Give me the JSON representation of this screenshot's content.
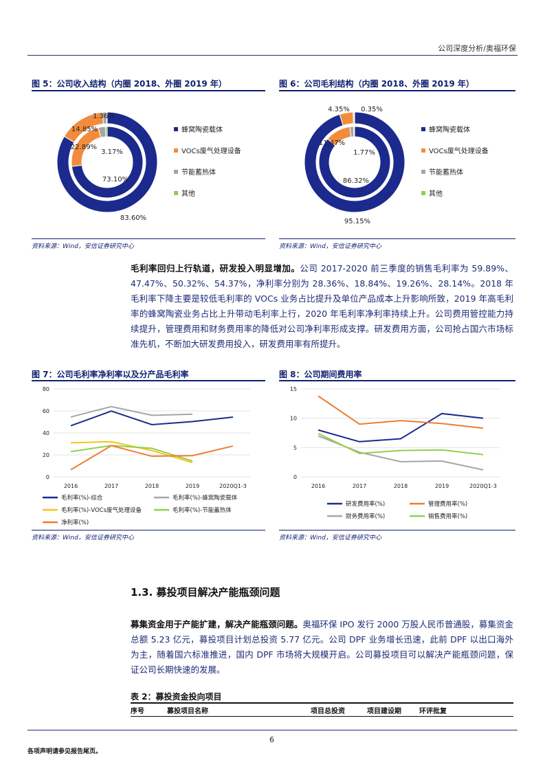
{
  "header": {
    "title": "公司深度分析/奥福环保"
  },
  "fig5": {
    "title": "图 5：公司收入结构（内圈 2018、外圈 2019 年）",
    "source": "资料来源：Wind，安信证券研究中心",
    "legend": [
      "蜂窝陶瓷载体",
      "VOCs废气处理设备",
      "节能蓄热体",
      "其他"
    ],
    "colors": [
      "#1b2a8c",
      "#f28c3c",
      "#a6a6a6",
      "#8fcf4c"
    ],
    "outer": [
      83.6,
      14.85,
      1.36,
      0.19
    ],
    "inner": [
      73.1,
      22.89,
      3.17,
      0.84
    ],
    "labels": {
      "outer_main": "83.60%",
      "outer_voc": "14.85%",
      "outer_small": "1.36%",
      "inner_main": "73.10%",
      "inner_voc": "22.89%",
      "inner_small": "3.17%"
    }
  },
  "fig6": {
    "title": "图 6：公司毛利结构（内圈 2018、外圈 2019 年）",
    "source": "资料来源：Wind，安信证券研究中心",
    "legend": [
      "蜂窝陶瓷载体",
      "VOCs废气处理设备",
      "节能蓄热体",
      "其他"
    ],
    "colors": [
      "#1b2a8c",
      "#f28c3c",
      "#a6a6a6",
      "#8fcf4c"
    ],
    "outer": [
      95.15,
      4.35,
      0.35,
      0.15
    ],
    "inner": [
      86.32,
      11.47,
      1.77,
      0.44
    ],
    "labels": {
      "outer_main": "95.15%",
      "outer_voc": "4.35%",
      "outer_small": "0.35%",
      "inner_main": "86.32%",
      "inner_voc": "11.47%",
      "inner_small": "1.77%"
    }
  },
  "para1": {
    "bold": "毛利率回归上行轨道，研发投入明显增加。",
    "text": "公司 2017-2020 前三季度的销售毛利率为 59.89%、47.47%、50.32%、54.37%，净利率分别为 28.36%、18.84%、19.26%、28.14%。2018 年毛利率下降主要是较低毛利率的 VOCs 业务占比提升及单位产品成本上升影响所致，2019 年高毛利率的蜂窝陶瓷业务占比上升带动毛利率上行，2020 年毛利率净利率持续上升。公司费用管控能力持续提升，管理费用和财务费用率的降低对公司净利率形成支撑。研发费用方面，公司抢占国六市场标准先机，不断加大研发费用投入，研发费用率有所提升。"
  },
  "fig7": {
    "title": "图 7：公司毛利率净利率以及分产品毛利率",
    "source": "资料来源：Wind，安信证券研究中心"
  },
  "fig8": {
    "title": "图 8：公司期间费用率",
    "source": "资料来源：Wind，安信证券研究中心"
  },
  "chart_data": [
    {
      "type": "line",
      "id": "fig7",
      "categories": [
        "2016",
        "2017",
        "2018",
        "2019",
        "2020Q1-3"
      ],
      "ylim": [
        0,
        80
      ],
      "yticks": [
        0,
        20,
        40,
        60,
        80
      ],
      "grid": true,
      "legend_position": "bottom",
      "series": [
        {
          "name": "毛利率(%)-综合",
          "color": "#1b2a8c",
          "values": [
            46.5,
            59.9,
            47.5,
            50.3,
            54.4
          ]
        },
        {
          "name": "毛利率(%)-蜂窝陶瓷载体",
          "color": "#a6a6a6",
          "values": [
            54.5,
            64.0,
            56.0,
            57.0,
            null
          ]
        },
        {
          "name": "毛利率(%)-VOCs废气处理设备",
          "color": "#f5c518",
          "values": [
            31.0,
            32.0,
            24.0,
            13.0,
            null
          ]
        },
        {
          "name": "毛利率(%)-节能蓄热体",
          "color": "#8fcf4c",
          "values": [
            23.0,
            28.5,
            26.0,
            14.5,
            null
          ]
        },
        {
          "name": "净利率(%)",
          "color": "#ed7d31",
          "values": [
            6.5,
            28.4,
            18.8,
            19.3,
            28.1
          ]
        }
      ]
    },
    {
      "type": "line",
      "id": "fig8",
      "categories": [
        "2016",
        "2017",
        "2018",
        "2019",
        "2020Q1-3"
      ],
      "ylim": [
        0,
        15
      ],
      "yticks": [
        0,
        5,
        10,
        15
      ],
      "grid": true,
      "legend_position": "bottom",
      "series": [
        {
          "name": "研发费用率(%)",
          "color": "#1b2a8c",
          "values": [
            8.0,
            6.0,
            6.5,
            10.8,
            10.0
          ]
        },
        {
          "name": "管理费用率(%)",
          "color": "#ed7d31",
          "values": [
            13.8,
            9.0,
            9.6,
            9.1,
            8.3
          ]
        },
        {
          "name": "财务费用率(%)",
          "color": "#a6a6a6",
          "values": [
            7.0,
            4.2,
            2.6,
            2.7,
            1.2
          ]
        },
        {
          "name": "销售费用率(%)",
          "color": "#8fcf4c",
          "values": [
            7.4,
            4.0,
            4.5,
            4.6,
            3.8
          ]
        }
      ]
    }
  ],
  "section": {
    "number": "1.3.",
    "title": "募投项目解决产能瓶颈问题"
  },
  "para2": {
    "bold": "募集资金用于产能扩建，解决产能瓶颈问题。",
    "text": "奥福环保 IPO 发行 2000 万股人民币普通股，募集资金总额 5.23 亿元，募投项目计划总投资 5.77 亿元。公司 DPF 业务增长迅速，此前 DPF 以出口海外为主，随着国六标准推进，国内 DPF 市场将大规模开启。公司募投项目可以解决产能瓶颈问题，保证公司长期快速的发展。"
  },
  "table2": {
    "title": "表 2：募投资金投向项目",
    "headers": [
      "序号",
      "募投项目名称",
      "项目总投资",
      "项目建设期",
      "环评批复"
    ]
  },
  "footer": {
    "page": "6",
    "disclaimer": "各项声明请参见报告尾页。"
  }
}
